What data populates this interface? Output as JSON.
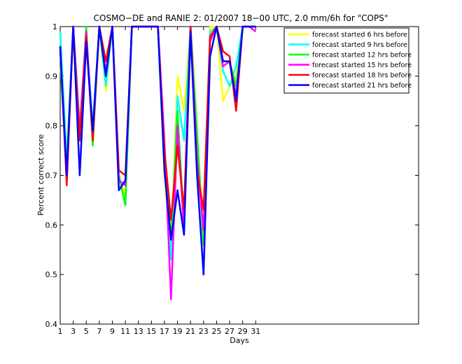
{
  "chart_data": {
    "type": "line",
    "title": "COSMO−DE and RANIE 2: 01/2007 18−00 UTC, 2.0 mm/6h for \"COPS\"",
    "xlabel": "Days",
    "ylabel": "Percent correct score",
    "xlim": [
      1,
      56
    ],
    "ylim": [
      0.4,
      1.0
    ],
    "x_ticks": [
      1,
      3,
      5,
      7,
      9,
      11,
      13,
      15,
      17,
      19,
      21,
      23,
      25,
      27,
      29,
      31
    ],
    "y_ticks": [
      0.4,
      0.5,
      0.6,
      0.7,
      0.8,
      0.9,
      1.0
    ],
    "y_tick_labels": [
      "0.4",
      "0.5",
      "0.6",
      "0.7",
      "0.8",
      "0.9",
      "1"
    ],
    "grid": false,
    "legend_position": "top-right",
    "x": [
      1,
      2,
      3,
      4,
      5,
      6,
      7,
      8,
      9,
      10,
      11,
      12,
      13,
      14,
      15,
      16,
      17,
      18,
      19,
      20,
      21,
      22,
      23,
      24,
      25,
      26,
      27,
      28,
      29,
      30,
      31
    ],
    "series": [
      {
        "name": "forecast started 6 hrs before",
        "color": "#ffff00",
        "values": [
          0.96,
          0.74,
          1.0,
          0.8,
          0.97,
          0.79,
          1.0,
          0.87,
          1.0,
          0.7,
          0.66,
          1.0,
          1.0,
          1.0,
          1.0,
          1.0,
          0.7,
          0.54,
          0.9,
          0.83,
          1.0,
          0.81,
          0.57,
          1.0,
          1.0,
          0.85,
          0.88,
          0.9,
          1.0,
          1.0,
          1.0
        ]
      },
      {
        "name": "forecast started 9 hrs before",
        "color": "#00ffff",
        "values": [
          0.99,
          0.73,
          1.0,
          0.8,
          0.98,
          0.8,
          1.0,
          0.88,
          1.0,
          0.7,
          0.64,
          1.0,
          1.0,
          1.0,
          1.0,
          1.0,
          0.72,
          0.53,
          0.86,
          0.77,
          1.0,
          0.79,
          0.56,
          0.99,
          1.0,
          0.91,
          0.88,
          0.92,
          1.0,
          1.0,
          1.0
        ]
      },
      {
        "name": "forecast started 12 hrs before",
        "color": "#00ff00",
        "values": [
          0.93,
          0.71,
          1.0,
          0.78,
          1.0,
          0.76,
          1.0,
          0.9,
          1.0,
          0.7,
          0.64,
          1.0,
          1.0,
          1.0,
          1.0,
          1.0,
          0.73,
          0.57,
          0.83,
          0.6,
          1.0,
          0.77,
          0.56,
          0.98,
          1.0,
          0.93,
          0.93,
          0.88,
          1.0,
          1.0,
          1.0
        ]
      },
      {
        "name": "forecast started 15 hrs before",
        "color": "#ff00ff",
        "values": [
          0.95,
          0.7,
          1.0,
          0.79,
          0.99,
          0.78,
          1.0,
          0.91,
          1.0,
          0.69,
          0.68,
          1.0,
          1.0,
          1.0,
          1.0,
          1.0,
          0.77,
          0.45,
          0.8,
          0.59,
          1.0,
          0.73,
          0.59,
          0.97,
          1.0,
          0.92,
          0.93,
          0.86,
          1.0,
          1.0,
          0.99
        ]
      },
      {
        "name": "forecast started 18 hrs before",
        "color": "#ff0000",
        "values": [
          0.96,
          0.68,
          1.0,
          0.77,
          0.98,
          0.77,
          1.0,
          0.93,
          1.0,
          0.71,
          0.7,
          1.0,
          1.0,
          1.0,
          1.0,
          1.0,
          0.75,
          0.61,
          0.76,
          0.63,
          1.0,
          0.71,
          0.63,
          0.98,
          1.0,
          0.95,
          0.94,
          0.83,
          1.0,
          1.0,
          1.0
        ]
      },
      {
        "name": "forecast started 21 hrs before",
        "color": "#0000ff",
        "values": [
          0.96,
          0.7,
          1.0,
          0.7,
          0.97,
          0.79,
          1.0,
          0.9,
          1.0,
          0.67,
          0.69,
          1.0,
          1.0,
          1.0,
          1.0,
          1.0,
          0.71,
          0.57,
          0.67,
          0.58,
          0.99,
          0.7,
          0.5,
          0.94,
          1.0,
          0.93,
          0.93,
          0.85,
          1.0,
          1.0,
          1.0
        ]
      }
    ]
  }
}
